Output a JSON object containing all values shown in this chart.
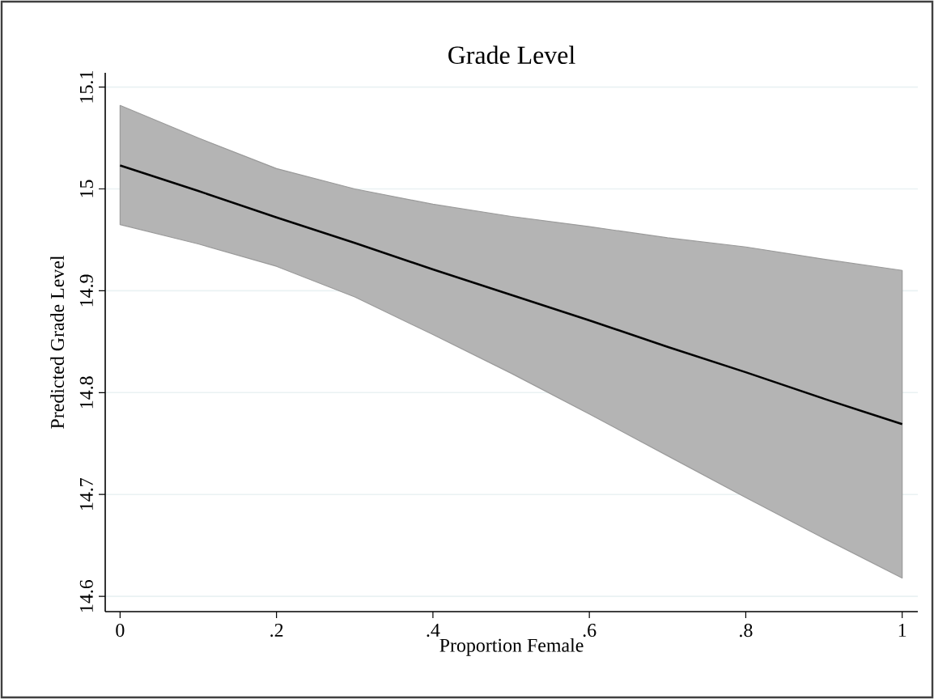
{
  "chart_data": {
    "type": "line",
    "title": "Grade Level",
    "xlabel": "Proportion Female",
    "ylabel": "Predicted Grade Level",
    "x": [
      0,
      0.1,
      0.2,
      0.3,
      0.4,
      0.5,
      0.6,
      0.7,
      0.8,
      0.9,
      1
    ],
    "series": [
      {
        "color": "#000000",
        "values": [
          15.023,
          14.998,
          14.972,
          14.947,
          14.921,
          14.896,
          14.871,
          14.845,
          14.82,
          14.794,
          14.769
        ],
        "upper": [
          15.082,
          15.05,
          15.02,
          15.0,
          14.985,
          14.973,
          14.963,
          14.952,
          14.943,
          14.931,
          14.92
        ],
        "lower": [
          14.965,
          14.946,
          14.924,
          14.894,
          14.857,
          14.819,
          14.779,
          14.738,
          14.697,
          14.657,
          14.618
        ]
      }
    ],
    "xlim": [
      -0.019,
      1.02
    ],
    "ylim": [
      14.585,
      15.114
    ],
    "xticks": [
      0,
      {
        "value": 0.2,
        "label": ".2"
      },
      {
        "value": 0.4,
        "label": ".4"
      },
      {
        "value": 0.6,
        "label": ".6"
      },
      {
        "value": 0.8,
        "label": ".8"
      },
      1
    ],
    "yticks": [
      14.6,
      14.7,
      14.8,
      14.9,
      15,
      15.1
    ],
    "grid": "y",
    "line_style": "solid",
    "marker": "none"
  }
}
